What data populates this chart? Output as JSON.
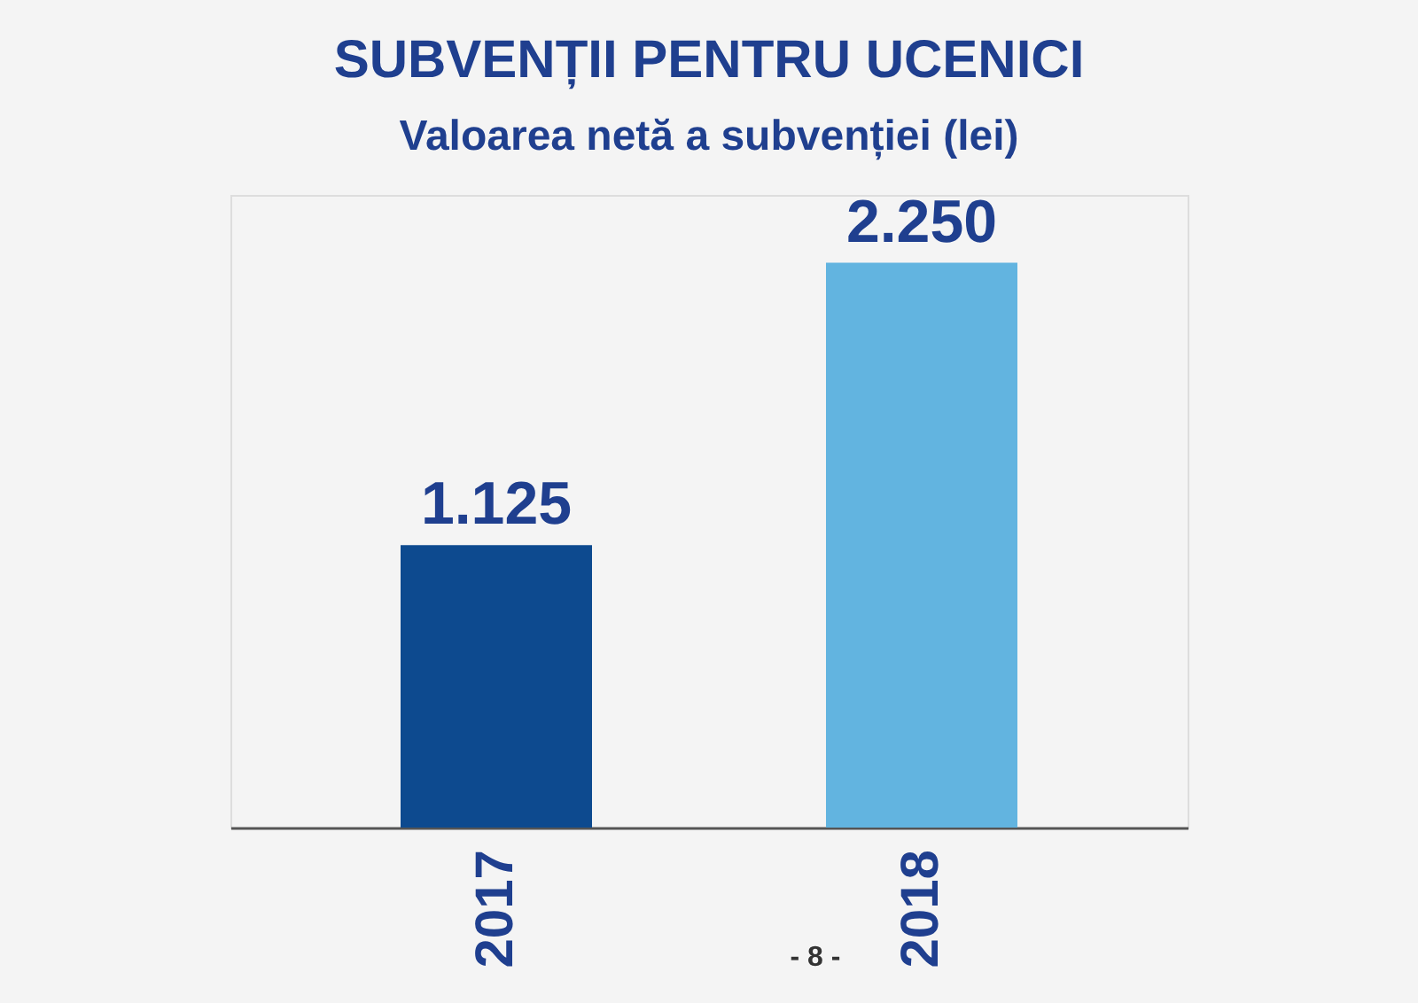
{
  "chart_data": {
    "type": "bar",
    "title": "SUBVENȚII PENTRU UCENICI",
    "subtitle": "Valoarea netă a subvenției (lei)",
    "categories": [
      "2017",
      "2018"
    ],
    "values": [
      1125,
      2250
    ],
    "colors": [
      "#0d4a8f",
      "#62b4e0"
    ],
    "value_labels": [
      "1.125",
      "2.250"
    ],
    "annotations": [
      "- 8 -"
    ]
  }
}
